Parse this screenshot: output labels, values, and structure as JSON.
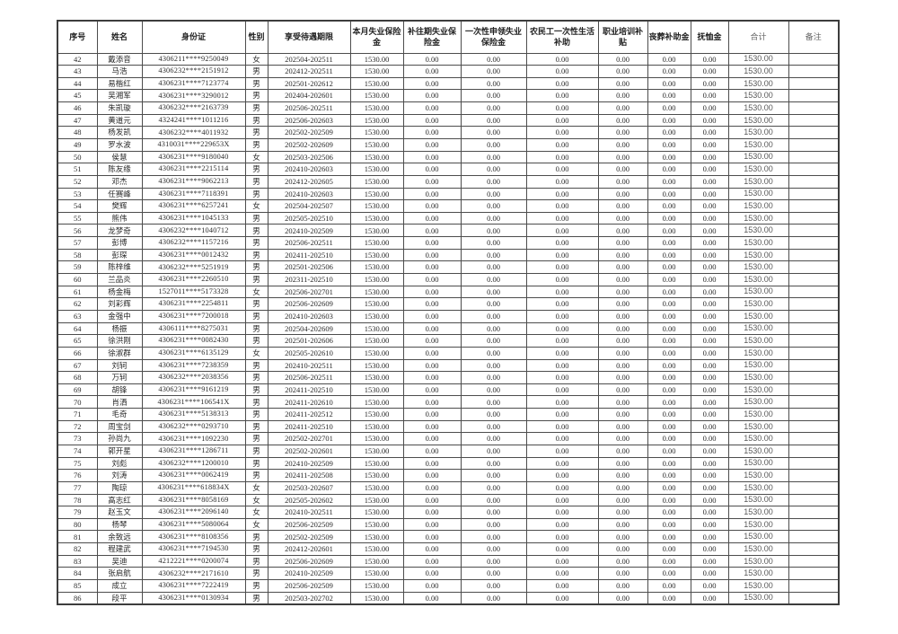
{
  "document": {
    "type": "unemployment-insurance-payment-table",
    "colors": {
      "text": "#2a2a2a",
      "border": "#4d4d4d",
      "total_text": "#595959",
      "background": "#ffffff"
    }
  },
  "table": {
    "headers": [
      "序号",
      "姓名",
      "身份证",
      "性别",
      "享受待遇期限",
      "本月失业保险金",
      "补往期失业保险金",
      "一次性申领失业保险金",
      "农民工一次性生活补助",
      "职业培训补贴",
      "丧葬补助金",
      "抚恤金",
      "合计",
      "备注"
    ],
    "row_fields": [
      "序号",
      "姓名",
      "身份证",
      "性别",
      "享受待遇期限"
    ],
    "amount_fields": [
      "本月失业保险金",
      "补往期失业保险金",
      "一次性申领失业保险金",
      "农民工一次性生活补助",
      "职业培训补贴",
      "丧葬补助金",
      "抚恤金",
      "合计",
      "备注"
    ],
    "amounts_per_row": [
      "1530.00",
      "0.00",
      "0.00",
      "0.00",
      "0.00",
      "0.00",
      "0.00",
      "1530.00",
      ""
    ],
    "rows": [
      [
        "42",
        "戴添音",
        "4306211****9250049",
        "女",
        "202504-202511"
      ],
      [
        "43",
        "马浩",
        "4306232****2151912",
        "男",
        "202412-202511"
      ],
      [
        "44",
        "易楷红",
        "4306231****7123774",
        "男",
        "202501-202612"
      ],
      [
        "45",
        "吴湘军",
        "4306231****3290012",
        "男",
        "202404-202601"
      ],
      [
        "46",
        "朱凯璇",
        "4306232****2163739",
        "男",
        "202506-202511"
      ],
      [
        "47",
        "黄道元",
        "4324241****1011216",
        "男",
        "202506-202603"
      ],
      [
        "48",
        "杨发凯",
        "4306232****4011932",
        "男",
        "202502-202509"
      ],
      [
        "49",
        "罗水波",
        "4310031****229653X",
        "男",
        "202502-202609"
      ],
      [
        "50",
        "侯慧",
        "4306231****9180040",
        "女",
        "202503-202506"
      ],
      [
        "51",
        "陈友缘",
        "4306231****2215114",
        "男",
        "202410-202603"
      ],
      [
        "52",
        "邓杰",
        "4306231****9062213",
        "男",
        "202412-202605"
      ],
      [
        "53",
        "任赛峰",
        "4306231****7118391",
        "男",
        "202410-202603"
      ],
      [
        "54",
        "樊辉",
        "4306231****6257241",
        "女",
        "202504-202507"
      ],
      [
        "55",
        "熊伟",
        "4306231****1045133",
        "男",
        "202505-202510"
      ],
      [
        "56",
        "龙梦奇",
        "4306232****1040712",
        "男",
        "202410-202509"
      ],
      [
        "57",
        "彭博",
        "4306232****1157216",
        "男",
        "202506-202511"
      ],
      [
        "58",
        "彭琛",
        "4306231****0012432",
        "男",
        "202411-202510"
      ],
      [
        "59",
        "陈梓维",
        "4306232****5251919",
        "男",
        "202501-202506"
      ],
      [
        "60",
        "兰品炎",
        "4306231****2260510",
        "男",
        "202311-202510"
      ],
      [
        "61",
        "杨金梅",
        "1527011****5173328",
        "女",
        "202506-202701"
      ],
      [
        "62",
        "刘彩辉",
        "4306231****2254811",
        "男",
        "202506-202609"
      ],
      [
        "63",
        "金强中",
        "4306231****7200018",
        "男",
        "202410-202603"
      ],
      [
        "64",
        "杨振",
        "4306111****8275031",
        "男",
        "202504-202609"
      ],
      [
        "65",
        "徐洪刚",
        "4306231****0082430",
        "男",
        "202501-202606"
      ],
      [
        "66",
        "徐淑群",
        "4306231****6135129",
        "女",
        "202505-202610"
      ],
      [
        "67",
        "刘轲",
        "4306231****7238359",
        "男",
        "202410-202511"
      ],
      [
        "68",
        "万轲",
        "4306232****2038356",
        "男",
        "202506-202511"
      ],
      [
        "69",
        "胡锋",
        "4306231****9161219",
        "男",
        "202411-202510"
      ],
      [
        "70",
        "肖洒",
        "4306231****106541X",
        "男",
        "202411-202610"
      ],
      [
        "71",
        "毛奇",
        "4306231****5138313",
        "男",
        "202411-202512"
      ],
      [
        "72",
        "周宝剑",
        "4306232****0293710",
        "男",
        "202411-202510"
      ],
      [
        "73",
        "孙尚九",
        "4306231****1092230",
        "男",
        "202502-202701"
      ],
      [
        "74",
        "郭开星",
        "4306231****1286711",
        "男",
        "202502-202601"
      ],
      [
        "75",
        "刘彪",
        "4306232****1200010",
        "男",
        "202410-202509"
      ],
      [
        "76",
        "刘涛",
        "4306231****0062419",
        "男",
        "202411-202508"
      ],
      [
        "77",
        "陶琼",
        "4306231****618834X",
        "女",
        "202503-202607"
      ],
      [
        "78",
        "高志红",
        "4306231****8058169",
        "女",
        "202505-202602"
      ],
      [
        "79",
        "赵玉文",
        "4306231****2096140",
        "女",
        "202410-202511"
      ],
      [
        "80",
        "杨琴",
        "4306231****5080064",
        "女",
        "202506-202509"
      ],
      [
        "81",
        "余致远",
        "4306231****8108356",
        "男",
        "202502-202509"
      ],
      [
        "82",
        "程建武",
        "4306231****7194530",
        "男",
        "202412-202601"
      ],
      [
        "83",
        "吴迪",
        "4212221****0200074",
        "男",
        "202506-202609"
      ],
      [
        "84",
        "张启航",
        "4306232****2171610",
        "男",
        "202410-202509"
      ],
      [
        "85",
        "成立",
        "4306231****7222419",
        "男",
        "202506-202509"
      ],
      [
        "86",
        "段平",
        "4306231****0130934",
        "男",
        "202503-202702"
      ]
    ]
  }
}
